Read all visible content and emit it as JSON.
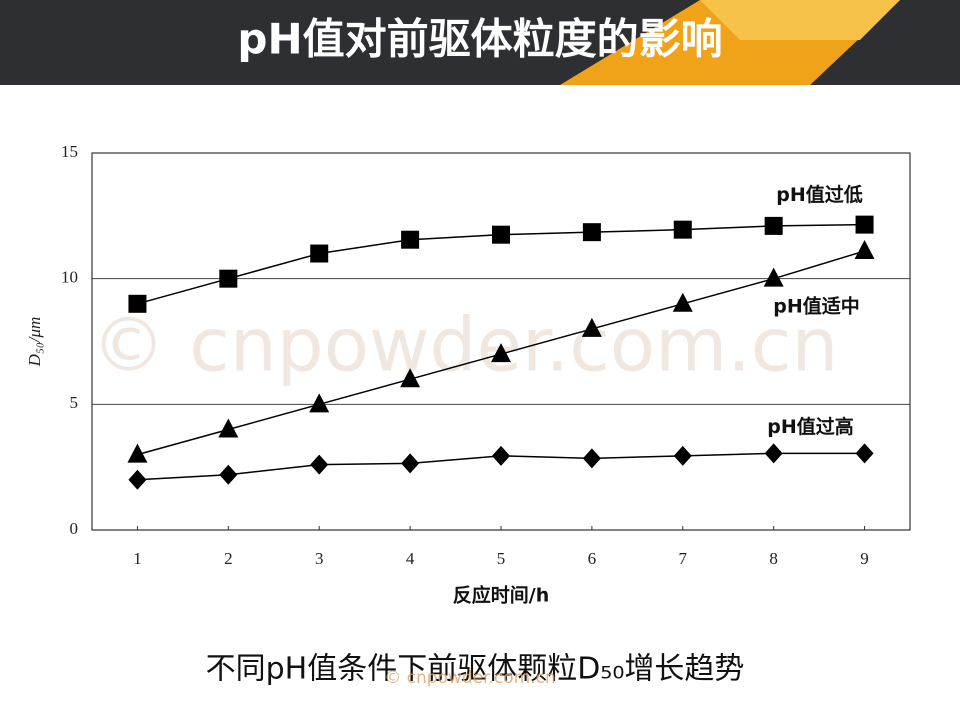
{
  "header": {
    "title": "pH值对前驱体粒度的影响"
  },
  "chart_data": {
    "type": "line",
    "x": [
      1,
      2,
      3,
      4,
      5,
      6,
      7,
      8,
      9
    ],
    "xlim": [
      0.5,
      9.5
    ],
    "xticks": [
      1,
      2,
      3,
      4,
      5,
      6,
      7,
      8,
      9
    ],
    "ylim": [
      0,
      15
    ],
    "yticks": [
      0,
      5,
      10,
      15
    ],
    "grid": true,
    "xlabel": "反应时间/h",
    "ylabel": "D₅₀/μm",
    "series": [
      {
        "name": "pH值过低",
        "color": "#000000",
        "marker": "square",
        "values": [
          9,
          10,
          11,
          11.55,
          11.75,
          11.85,
          11.95,
          12.1,
          12.15
        ]
      },
      {
        "name": "pH值适中",
        "color": "#000000",
        "marker": "triangle",
        "values": [
          3,
          4,
          5,
          6,
          7,
          8,
          9,
          10,
          11.1
        ]
      },
      {
        "name": "pH值过高",
        "color": "#000000",
        "marker": "diamond",
        "values": [
          2,
          2.2,
          2.6,
          2.65,
          2.95,
          2.85,
          2.95,
          3.05,
          3.05
        ]
      }
    ]
  },
  "caption": "不同pH值条件下前驱体颗粒D₅₀增长趋势",
  "watermark": "© cnpowder.com.cn"
}
